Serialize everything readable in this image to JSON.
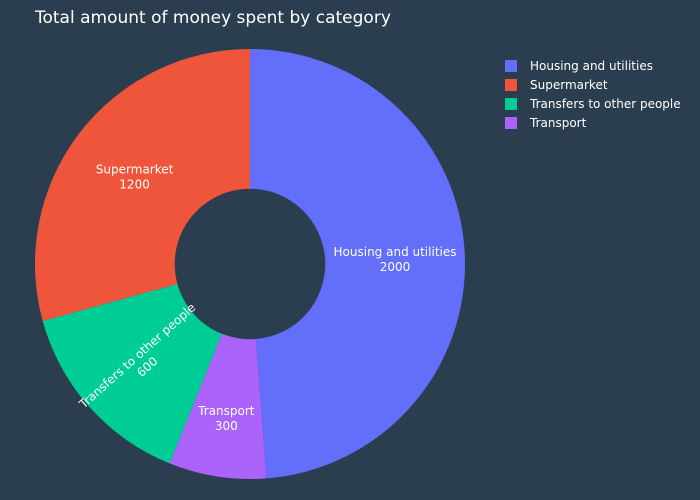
{
  "chart_data": {
    "type": "pie",
    "title": "Total amount of money spent by category",
    "hole": 0.35,
    "categories": [
      "Housing and utilities",
      "Supermarket",
      "Transfers to other people",
      "Transport"
    ],
    "values": [
      2000,
      1200,
      600,
      300
    ],
    "colors": [
      "#636efa",
      "#ef553b",
      "#00cc96",
      "#ab63fa"
    ],
    "legend_position": "top-right",
    "slice_order": [
      "Housing and utilities",
      "Transport",
      "Transfers to other people",
      "Supermarket"
    ],
    "slice_direction": "clockwise",
    "text_info": "label+value"
  }
}
